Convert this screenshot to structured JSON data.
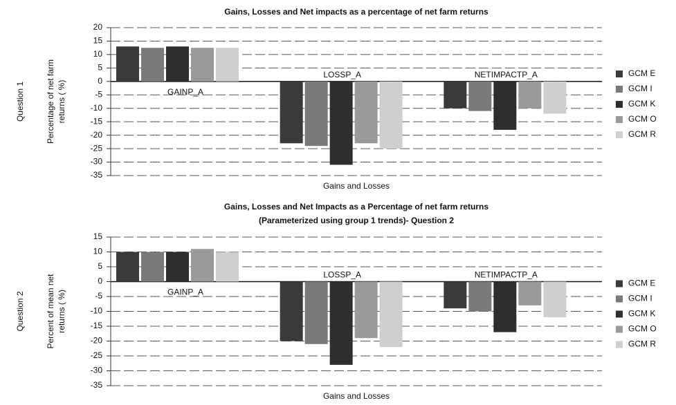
{
  "chart_data": [
    {
      "type": "bar",
      "row_label": "Question 1",
      "title": "Gains, Losses and Net impacts as a percentage of net farm returns",
      "ylabel": [
        "Percentage of net farm",
        "returns ( %)"
      ],
      "xlabel": "Gains and Losses",
      "categories": [
        "GAINP_A",
        "LOSSP_A",
        "NETIMPACTP_A"
      ],
      "series": [
        {
          "name": "GCM E",
          "color": "#3a3a3a",
          "values": [
            13,
            -23,
            -10
          ]
        },
        {
          "name": "GCM I",
          "color": "#7a7a7a",
          "values": [
            12.5,
            -24,
            -11
          ]
        },
        {
          "name": "GCM K",
          "color": "#2e2e2e",
          "values": [
            13,
            -31,
            -18
          ]
        },
        {
          "name": "GCM O",
          "color": "#9a9a9a",
          "values": [
            12.5,
            -23,
            -10
          ]
        },
        {
          "name": "GCM R",
          "color": "#cfcfcf",
          "values": [
            12.5,
            -25,
            -12
          ]
        }
      ],
      "ylim": [
        -35,
        20
      ],
      "yticks": [
        -35,
        -30,
        -25,
        -20,
        -15,
        -10,
        -5,
        0,
        5,
        10,
        15,
        20
      ],
      "grid": true
    },
    {
      "type": "bar",
      "row_label": "Question 2",
      "title": "Gains, Losses and Net Impacts as a Percentage of net farm returns",
      "subtitle": "(Parameterized using group 1 trends)- Question 2",
      "ylabel": [
        "Percent of mean net",
        "returns ( %)"
      ],
      "xlabel": "Gains and Losses",
      "categories": [
        "GAINP_A",
        "LOSSP_A",
        "NETIMPACTP_A"
      ],
      "series": [
        {
          "name": "GCM E",
          "color": "#3a3a3a",
          "values": [
            10,
            -20,
            -9
          ]
        },
        {
          "name": "GCM I",
          "color": "#7a7a7a",
          "values": [
            10,
            -21,
            -10
          ]
        },
        {
          "name": "GCM K",
          "color": "#2e2e2e",
          "values": [
            10,
            -28,
            -17
          ]
        },
        {
          "name": "GCM O",
          "color": "#9a9a9a",
          "values": [
            11,
            -19,
            -8
          ]
        },
        {
          "name": "GCM R",
          "color": "#cfcfcf",
          "values": [
            10,
            -22,
            -12
          ]
        }
      ],
      "ylim": [
        -35,
        15
      ],
      "yticks": [
        -35,
        -30,
        -25,
        -20,
        -15,
        -10,
        -5,
        0,
        5,
        10,
        15
      ],
      "grid": true
    }
  ]
}
